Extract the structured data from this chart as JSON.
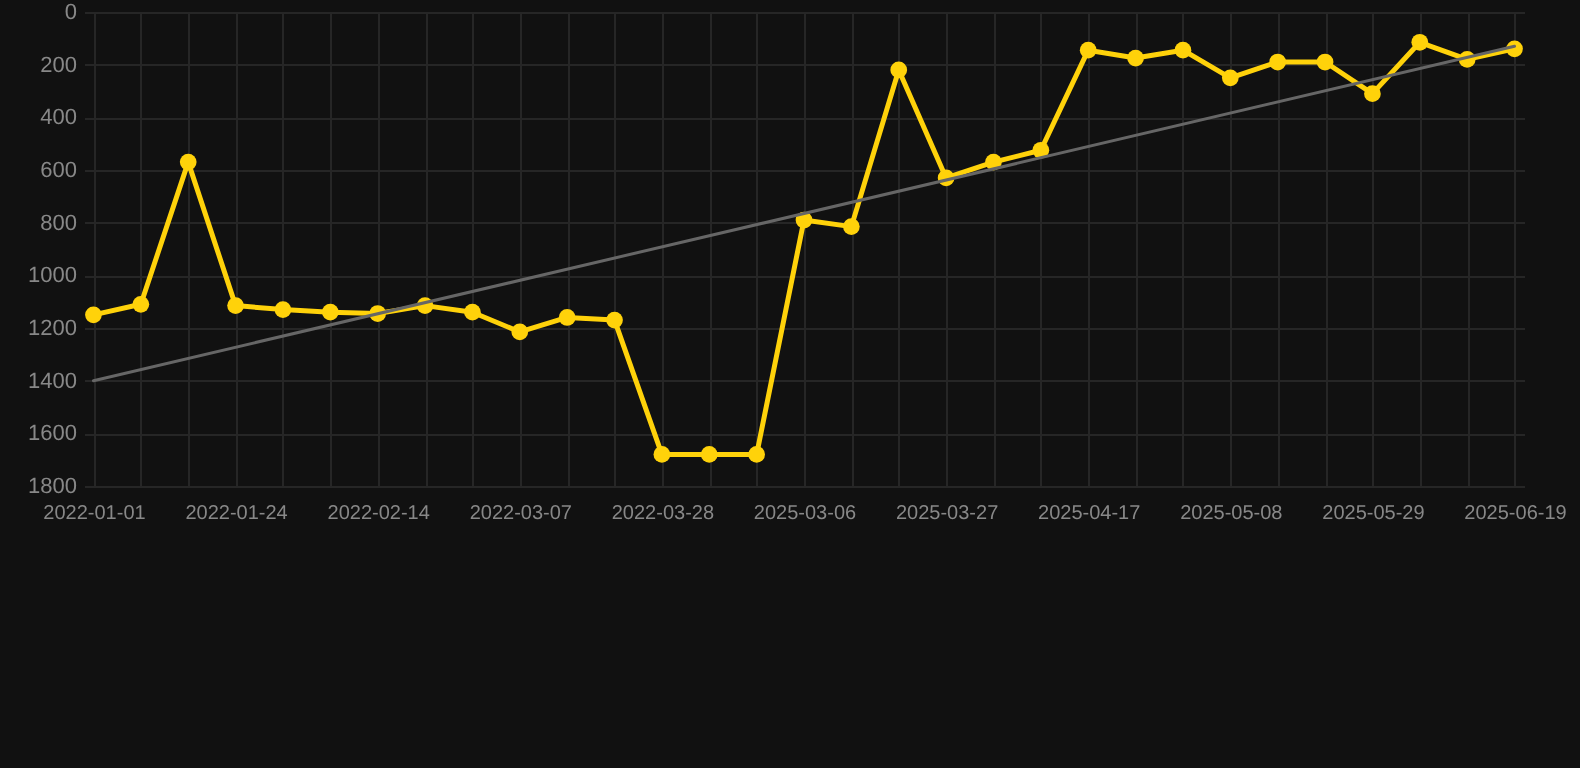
{
  "chart_data": {
    "type": "line",
    "categories": [
      "2022-01-01",
      null,
      null,
      "2022-01-24",
      null,
      null,
      "2022-02-14",
      null,
      null,
      "2022-03-07",
      null,
      null,
      "2022-03-28",
      null,
      null,
      "2025-03-06",
      null,
      null,
      "2025-03-27",
      null,
      null,
      "2025-04-17",
      null,
      null,
      "2025-05-08",
      null,
      null,
      "2025-05-29",
      null,
      null,
      "2025-06-19"
    ],
    "series": [
      {
        "color": "#ffd20a",
        "marker": "circle",
        "values": [
          1150,
          1110,
          570,
          1115,
          1130,
          1140,
          1145,
          1115,
          1140,
          1215,
          1160,
          1170,
          1680,
          1680,
          1680,
          790,
          815,
          220,
          630,
          570,
          525,
          145,
          175,
          145,
          250,
          190,
          190,
          310,
          115,
          180,
          140
        ]
      },
      {
        "color": "#666666",
        "marker": "none",
        "values": [
          1400,
          null,
          null,
          null,
          null,
          null,
          null,
          null,
          null,
          null,
          null,
          null,
          null,
          null,
          null,
          null,
          null,
          null,
          null,
          null,
          null,
          null,
          null,
          null,
          null,
          null,
          null,
          null,
          null,
          null,
          130
        ]
      }
    ],
    "ylim": [
      1800,
      0
    ],
    "yticks": [
      0,
      200,
      400,
      600,
      800,
      1000,
      1200,
      1400,
      1600,
      1800
    ],
    "grid": true
  }
}
